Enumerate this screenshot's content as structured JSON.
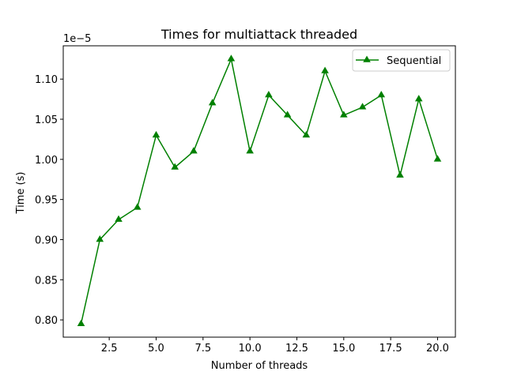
{
  "chart_data": {
    "type": "line",
    "title": "Times for multiattack threaded",
    "xlabel": "Number of threads",
    "ylabel": "Time (s)",
    "y_scale_factor": "1e−5",
    "xlim": [
      0.05,
      20.95
    ],
    "ylim": [
      0.7785,
      1.1415
    ],
    "xticks": [
      2.5,
      5.0,
      7.5,
      10.0,
      12.5,
      15.0,
      17.5,
      20.0
    ],
    "xtick_labels": [
      "2.5",
      "5.0",
      "7.5",
      "10.0",
      "12.5",
      "15.0",
      "17.5",
      "20.0"
    ],
    "yticks": [
      0.8,
      0.85,
      0.9,
      0.95,
      1.0,
      1.05,
      1.1
    ],
    "ytick_labels": [
      "0.80",
      "0.85",
      "0.90",
      "0.95",
      "1.00",
      "1.05",
      "1.10"
    ],
    "grid": false,
    "legend_position": "top-right",
    "x": [
      1,
      2,
      3,
      4,
      5,
      6,
      7,
      8,
      9,
      10,
      11,
      12,
      13,
      14,
      15,
      16,
      17,
      18,
      19,
      20
    ],
    "series": [
      {
        "name": "Sequential",
        "color": "#008000",
        "marker": "triangle-up",
        "values": [
          0.795,
          0.9,
          0.925,
          0.94,
          1.03,
          0.99,
          1.01,
          1.07,
          1.125,
          1.01,
          1.08,
          1.055,
          1.03,
          1.11,
          1.055,
          1.065,
          1.08,
          0.98,
          1.075,
          1.0
        ]
      }
    ]
  }
}
